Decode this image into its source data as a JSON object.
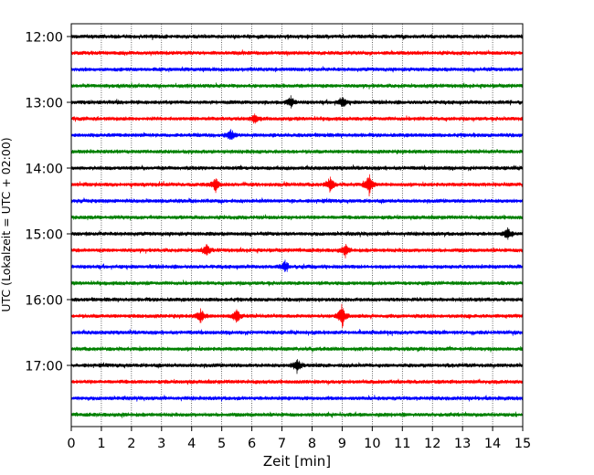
{
  "chart_data": {
    "type": "line",
    "title": "",
    "xlabel": "Zeit  [min]",
    "ylabel": "UTC (Lokalzeit = UTC + 02:00)",
    "xlim": [
      0,
      15
    ],
    "xticks": [
      0,
      1,
      2,
      3,
      4,
      5,
      6,
      7,
      8,
      9,
      10,
      11,
      12,
      13,
      14,
      15
    ],
    "vertical_grid": true,
    "trace_interval_minutes": 15,
    "trace_colors": [
      "#000000",
      "#ff0000",
      "#0000ff",
      "#008000"
    ],
    "start_time": "12:00",
    "end_time": "17:45",
    "ytick_labels": [
      "12:00",
      "13:00",
      "14:00",
      "15:00",
      "16:00",
      "17:00"
    ],
    "series": [
      {
        "start": "12:00"
      },
      {
        "start": "12:15"
      },
      {
        "start": "12:30"
      },
      {
        "start": "12:45"
      },
      {
        "start": "13:00"
      },
      {
        "start": "13:15"
      },
      {
        "start": "13:30"
      },
      {
        "start": "13:45"
      },
      {
        "start": "14:00"
      },
      {
        "start": "14:15"
      },
      {
        "start": "14:30"
      },
      {
        "start": "14:45"
      },
      {
        "start": "15:00"
      },
      {
        "start": "15:15"
      },
      {
        "start": "15:30"
      },
      {
        "start": "15:45"
      },
      {
        "start": "16:00"
      },
      {
        "start": "16:15"
      },
      {
        "start": "16:30"
      },
      {
        "start": "16:45"
      },
      {
        "start": "17:00"
      },
      {
        "start": "17:15"
      },
      {
        "start": "17:30"
      },
      {
        "start": "17:45"
      }
    ],
    "events": [
      {
        "series": 5,
        "x": 6.1,
        "amp": 0.5
      },
      {
        "series": 9,
        "x": 4.8,
        "amp": 0.7
      },
      {
        "series": 9,
        "x": 8.6,
        "amp": 0.8
      },
      {
        "series": 9,
        "x": 9.9,
        "amp": 1.2
      },
      {
        "series": 6,
        "x": 5.3,
        "amp": 0.6
      },
      {
        "series": 4,
        "x": 7.3,
        "amp": 0.6
      },
      {
        "series": 4,
        "x": 9.0,
        "amp": 0.6
      },
      {
        "series": 13,
        "x": 4.5,
        "amp": 0.6
      },
      {
        "series": 13,
        "x": 9.1,
        "amp": 0.6
      },
      {
        "series": 14,
        "x": 7.1,
        "amp": 0.6
      },
      {
        "series": 17,
        "x": 4.3,
        "amp": 0.8
      },
      {
        "series": 17,
        "x": 5.5,
        "amp": 0.8
      },
      {
        "series": 17,
        "x": 9.0,
        "amp": 1.4
      },
      {
        "series": 20,
        "x": 7.5,
        "amp": 0.8
      },
      {
        "series": 12,
        "x": 14.5,
        "amp": 0.6
      }
    ]
  }
}
